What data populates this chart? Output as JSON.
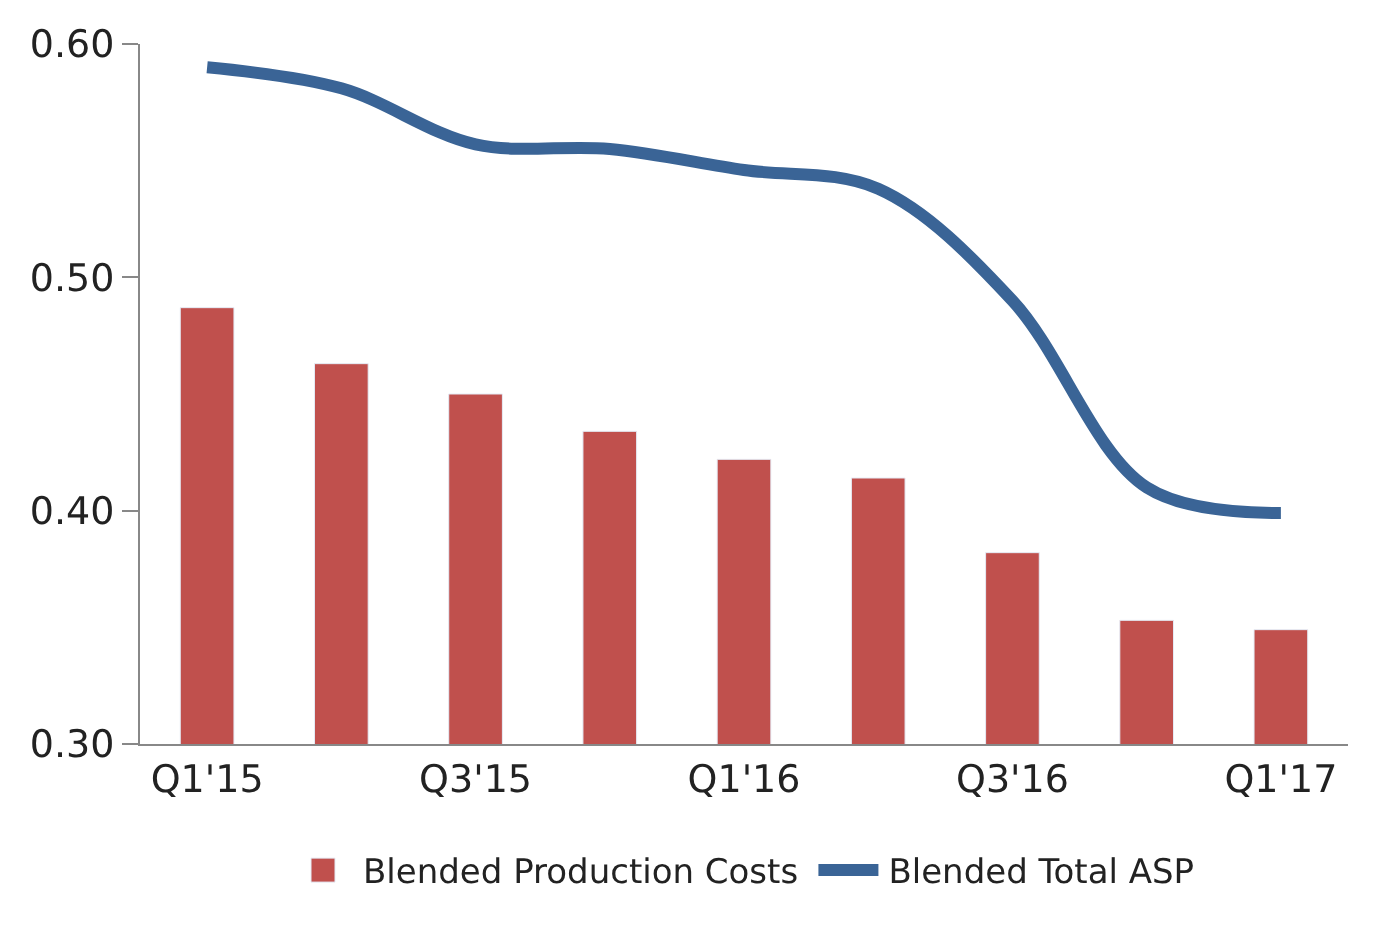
{
  "chart_data": {
    "type": "bar",
    "categories": [
      "Q1'15",
      null,
      "Q3'15",
      null,
      "Q1'16",
      null,
      "Q3'16",
      null,
      "Q1'17"
    ],
    "series": [
      {
        "name": "Blended Production Costs",
        "color": "#c0504d",
        "values": [
          0.487,
          0.463,
          0.45,
          0.434,
          0.422,
          0.414,
          0.382,
          0.353,
          0.349
        ]
      },
      {
        "name": "Blended Total ASP",
        "color": "#3a6496",
        "type": "line",
        "values": [
          0.59,
          0.581,
          0.557,
          0.555,
          0.546,
          0.538,
          0.49,
          0.41,
          0.399
        ]
      }
    ],
    "ylim": [
      0.3,
      0.6
    ],
    "yticks": [
      {
        "value": 0.3,
        "label": "0.30"
      },
      {
        "value": 0.4,
        "label": "0.40"
      },
      {
        "value": 0.5,
        "label": "0.50"
      },
      {
        "value": 0.6,
        "label": "0.60"
      }
    ],
    "legend": "bottom",
    "marker": "none",
    "line_style": "solid"
  }
}
